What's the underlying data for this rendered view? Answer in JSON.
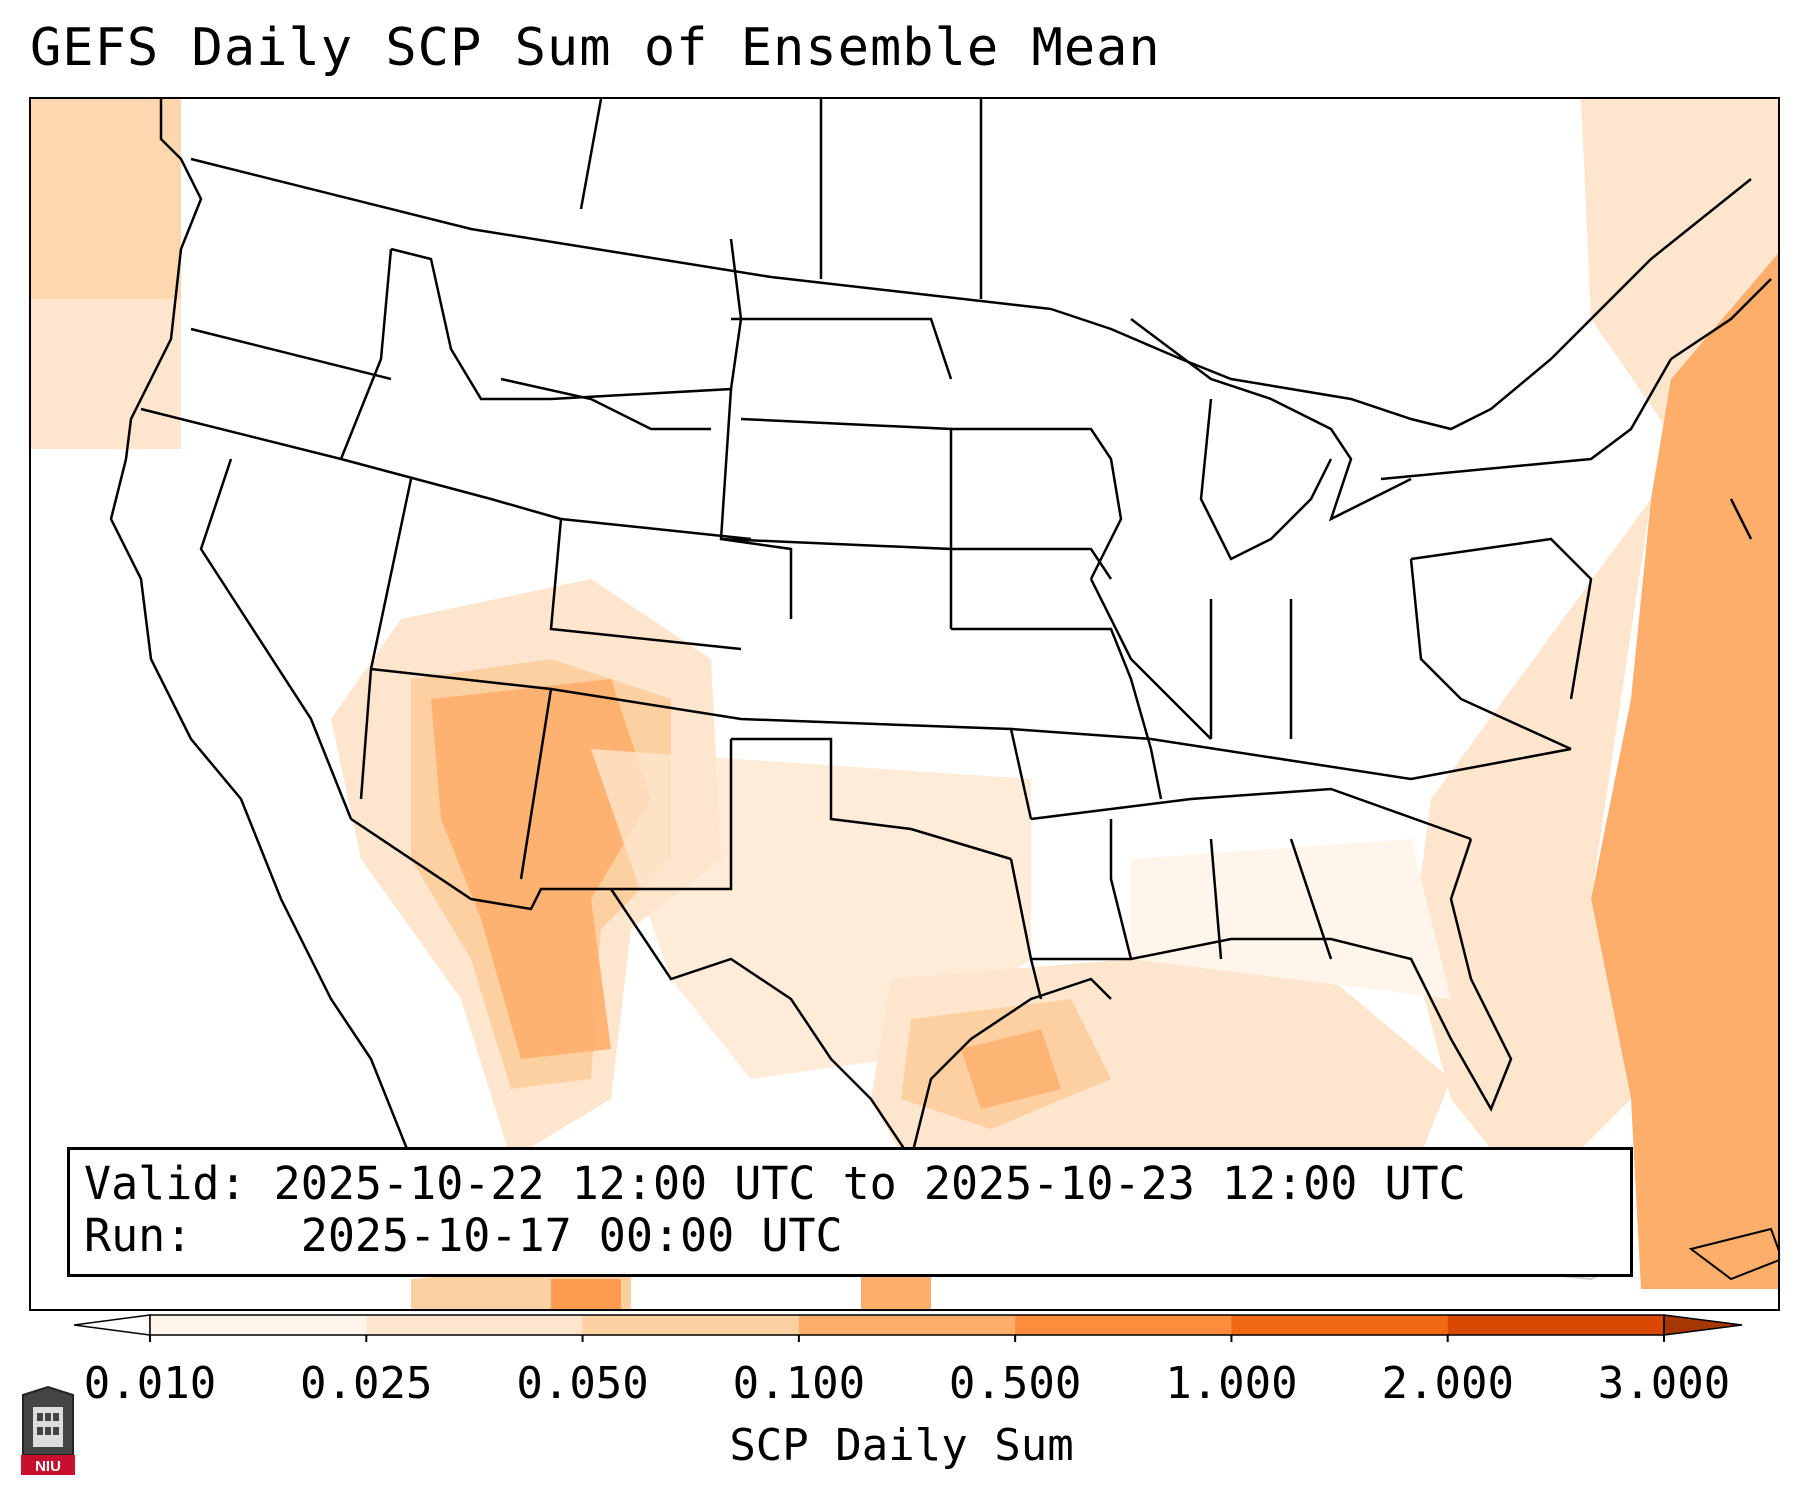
{
  "title": "GEFS Daily SCP Sum of Ensemble Mean",
  "info": {
    "valid_label": "Valid:",
    "valid_value": "2025-10-22 12:00 UTC to 2025-10-23 12:00 UTC",
    "run_label": "Run:",
    "run_value": "2025-10-17 00:00 UTC"
  },
  "colorbar": {
    "label": "SCP Daily Sum",
    "ticks": [
      "0.010",
      "0.025",
      "0.050",
      "0.100",
      "0.500",
      "1.000",
      "2.000",
      "3.000"
    ],
    "colors": [
      "#fff5eb",
      "#fee6ce",
      "#fdd0a2",
      "#fdae6b",
      "#fd8d3c",
      "#f16913",
      "#d94801"
    ],
    "extend": "both"
  },
  "logo": {
    "text": "NIU"
  },
  "icons": [
    "niu-logo-icon"
  ]
}
